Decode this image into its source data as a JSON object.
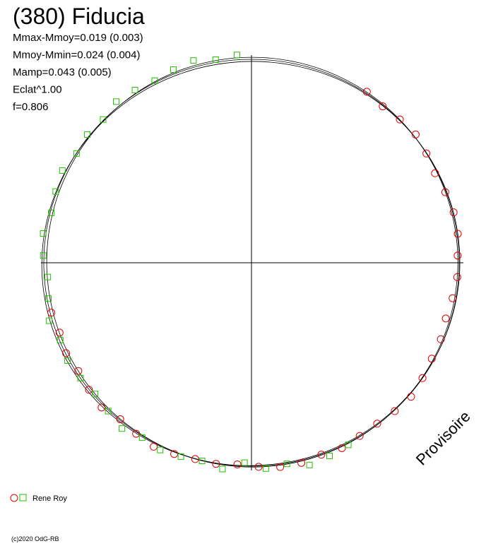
{
  "chart_data": {
    "type": "polar",
    "title": "(380) Fiducia",
    "stats": [
      "Mmax-Mmoy=0.019 (0.003)",
      "Mmoy-Mmin=0.024 (0.004)",
      "Mamp=0.043 (0.005)",
      "Eclat^1.00",
      "f=0.806"
    ],
    "legend": {
      "label": "Rene Roy"
    },
    "watermark": "Provisoire",
    "copyright": "(c)2020 OdG-RB",
    "series": [
      {
        "marker": "circle",
        "color": "#e00000",
        "x": [
          34,
          40,
          46,
          52,
          58,
          64,
          70,
          76,
          82,
          88,
          94,
          100,
          106,
          112,
          118,
          124,
          130,
          136,
          142,
          148,
          154,
          160,
          166,
          172,
          178,
          184,
          190,
          196,
          202,
          208,
          214,
          220,
          226,
          232,
          238,
          244,
          250,
          256
        ],
        "values": [
          1.0,
          0.99,
          1.0,
          1.01,
          1.0,
          0.99,
          1.0,
          1.01,
          1.01,
          1.0,
          1.0,
          0.99,
          0.98,
          0.99,
          0.99,
          1.0,
          1.01,
          1.0,
          0.99,
          0.99,
          1.0,
          0.99,
          1.0,
          1.0,
          0.99,
          0.98,
          0.99,
          0.99,
          1.0,
          1.01,
          1.0,
          0.99,
          1.01,
          1.0,
          0.99,
          1.0,
          0.99,
          1.0
        ]
      },
      {
        "marker": "square",
        "color": "#20c000",
        "x": [
          152,
          158,
          164,
          170,
          176,
          182,
          188,
          194,
          200,
          206,
          212,
          218,
          224,
          230,
          236,
          242,
          248,
          254,
          260,
          266,
          272,
          278,
          284,
          290,
          296,
          302,
          308,
          314,
          320,
          326,
          332,
          338,
          344,
          350,
          356
        ],
        "values": [
          1.0,
          1.01,
          1.02,
          0.99,
          1.0,
          0.97,
          1.01,
          0.99,
          1.0,
          1.01,
          1.0,
          1.02,
          1.0,
          0.99,
          1.0,
          1.01,
          1.0,
          1.02,
          1.0,
          0.99,
          1.01,
          1.02,
          1.0,
          1.01,
          1.02,
          1.0,
          1.01,
          1.0,
          1.02,
          1.01,
          1.0,
          1.01,
          1.02,
          1.0,
          1.01
        ]
      }
    ]
  }
}
